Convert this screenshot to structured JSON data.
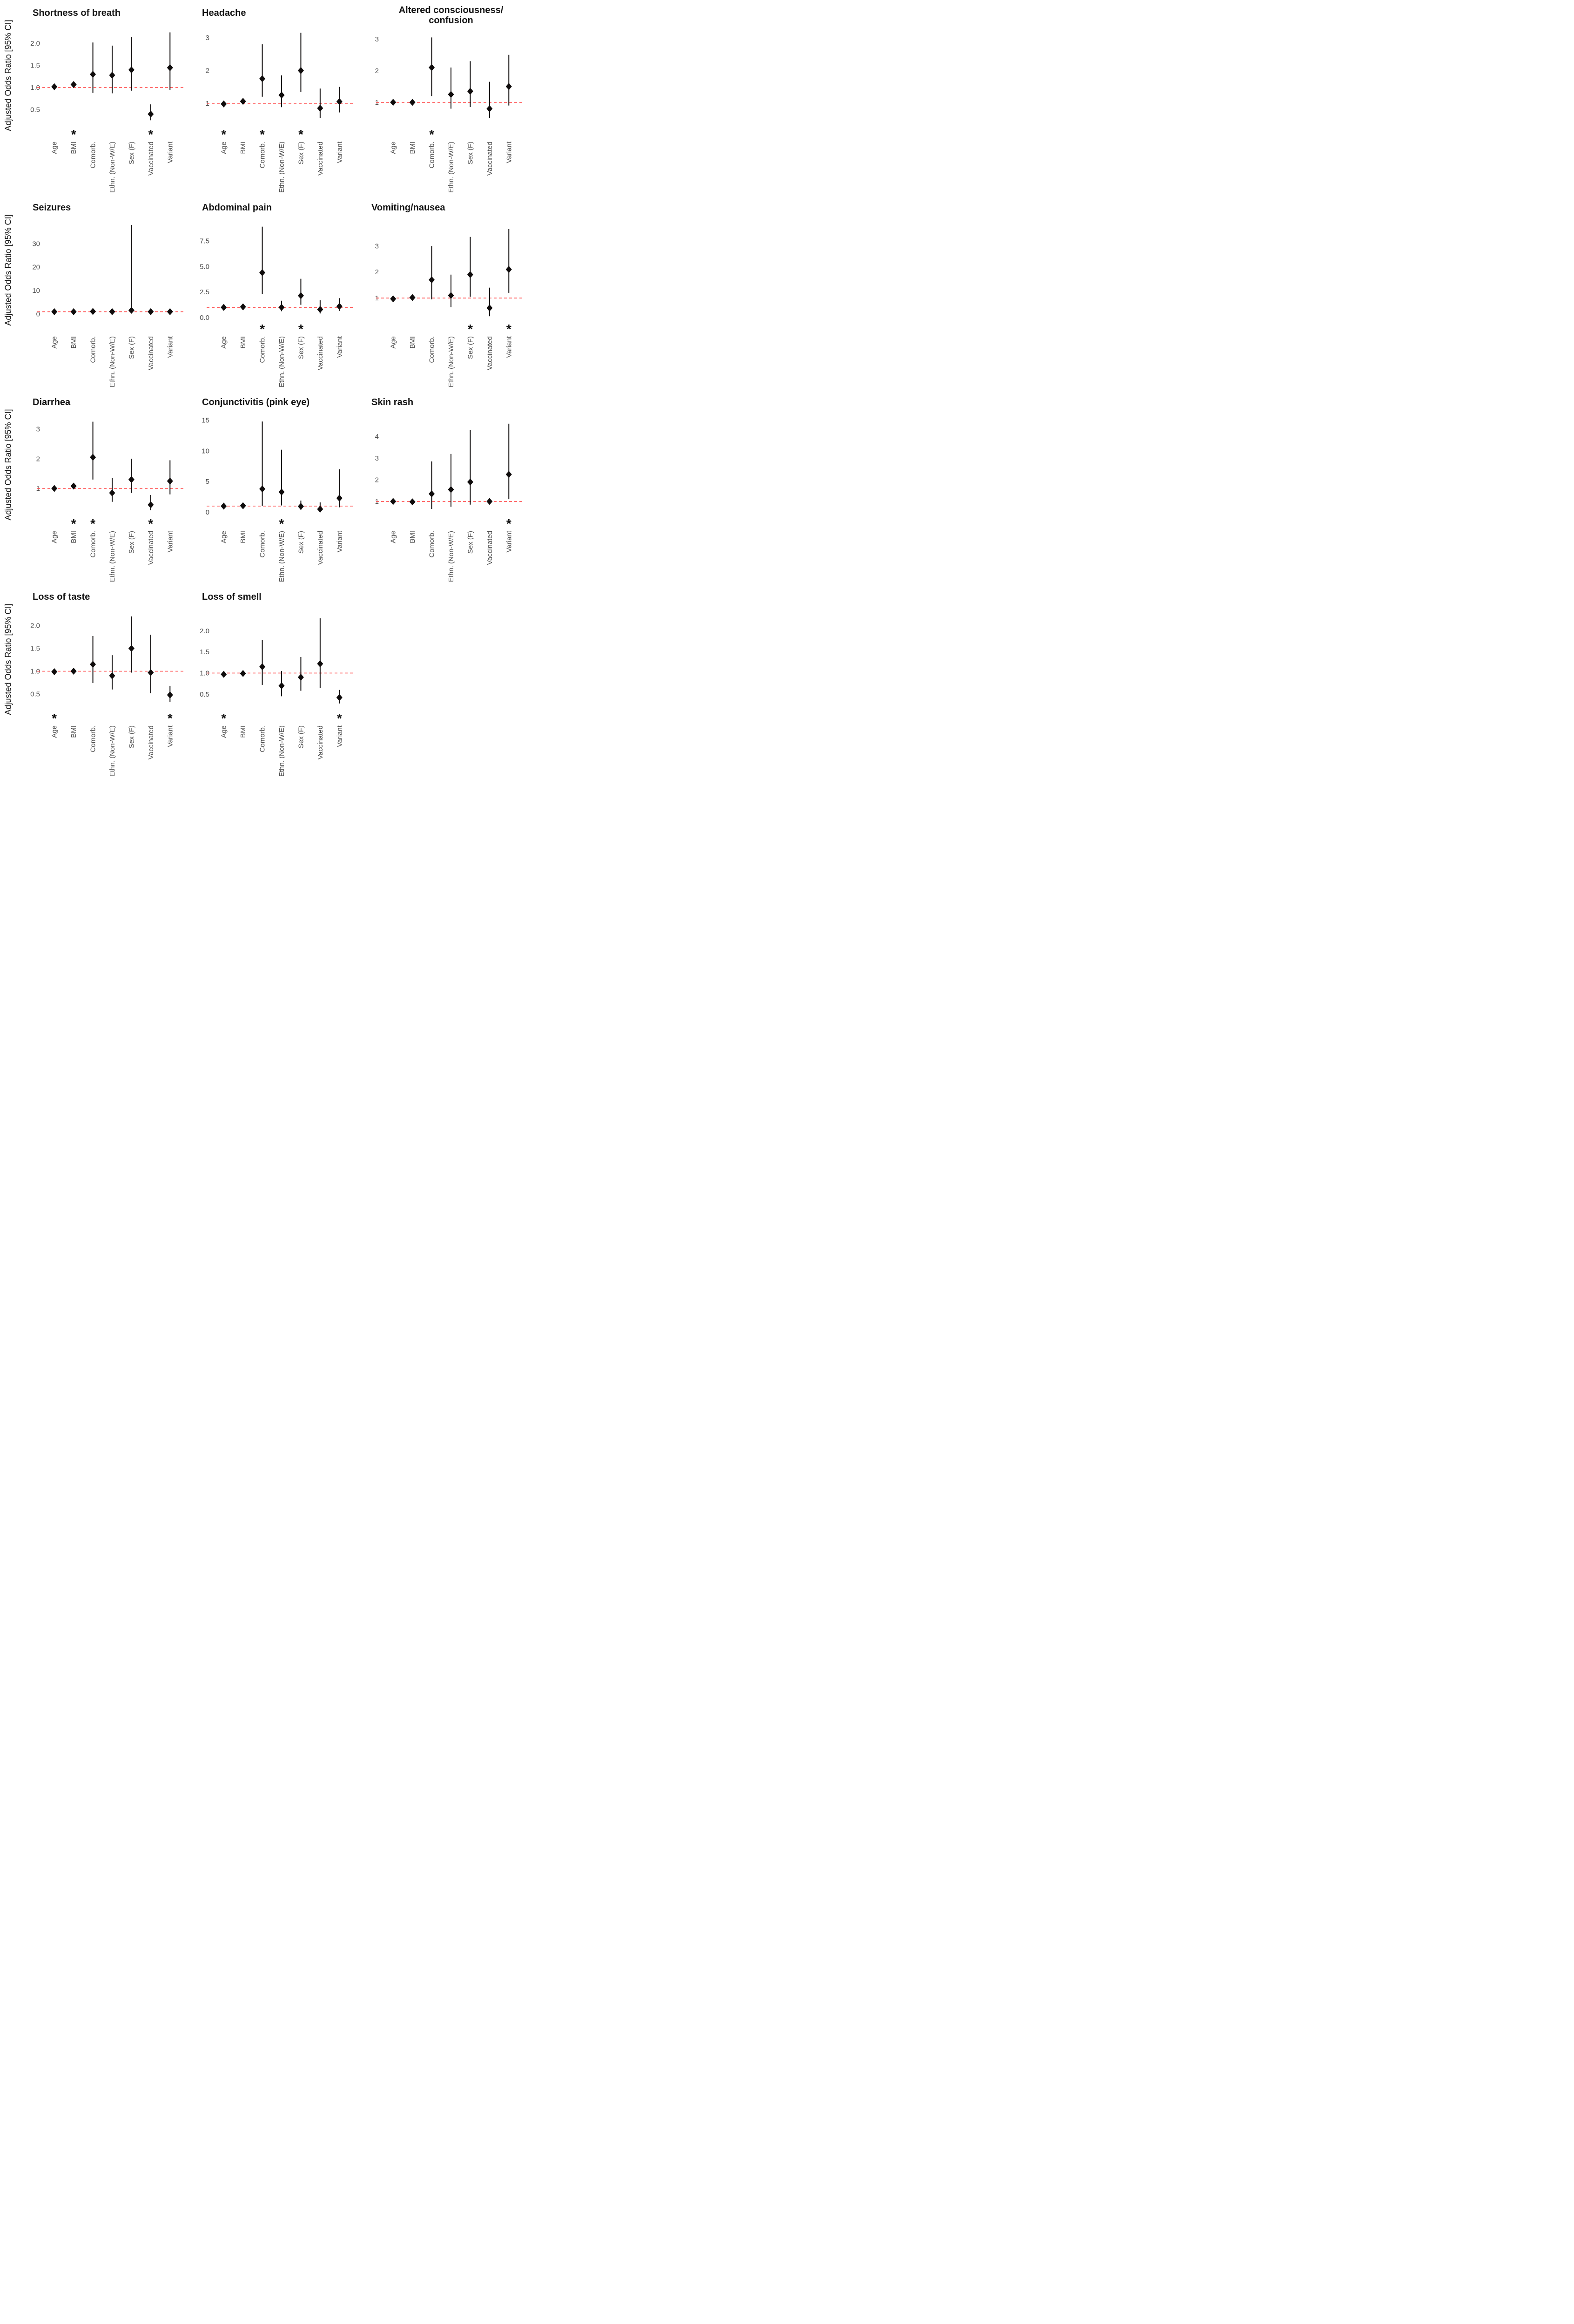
{
  "figure": {
    "ylabel": "Adjusted Odds Ratio [95% CI]",
    "significance_marker": "*",
    "reference_line": 1.0,
    "categories": [
      "Age",
      "BMI",
      "Comorb.",
      "Ethn. (Non-W/E)",
      "Sex (F)",
      "Vaccinated",
      "Variant"
    ],
    "colors": {
      "reference": "#ff4a4a",
      "point": "#0f0c0c",
      "tick_text": "#4d4d4d",
      "title_text": "#141414",
      "background": "#ffffff"
    }
  },
  "chart_data": [
    {
      "type": "scatter",
      "marker": "diamond",
      "row": 0,
      "col": 0,
      "title": "Shortness of breath",
      "title_lines": [
        "Shortness of breath"
      ],
      "xlabel": "",
      "ylabel": "Adjusted Odds Ratio [95% CI]",
      "yticks": [
        0.5,
        1.0,
        1.5,
        2.0
      ],
      "ytick_labels": [
        "0.5",
        "1.0",
        "1.5",
        "2.0"
      ],
      "ylim": [
        0.2,
        2.35
      ],
      "points": [
        {
          "category": "Age",
          "or": 1.02,
          "ci_low": 0.98,
          "ci_high": 1.07,
          "significant": false
        },
        {
          "category": "BMI",
          "or": 1.07,
          "ci_low": 1.03,
          "ci_high": 1.12,
          "significant": true
        },
        {
          "category": "Comorb.",
          "or": 1.3,
          "ci_low": 0.88,
          "ci_high": 2.02,
          "significant": false
        },
        {
          "category": "Ethn. (Non-W/E)",
          "or": 1.28,
          "ci_low": 0.87,
          "ci_high": 1.95,
          "significant": false
        },
        {
          "category": "Sex (F)",
          "or": 1.4,
          "ci_low": 0.93,
          "ci_high": 2.15,
          "significant": false
        },
        {
          "category": "Vaccinated",
          "or": 0.4,
          "ci_low": 0.26,
          "ci_high": 0.62,
          "significant": true
        },
        {
          "category": "Variant",
          "or": 1.45,
          "ci_low": 0.95,
          "ci_high": 2.25,
          "significant": false
        }
      ]
    },
    {
      "type": "scatter",
      "marker": "diamond",
      "row": 0,
      "col": 1,
      "title": "Headache",
      "title_lines": [
        "Headache"
      ],
      "xlabel": "",
      "ylabel": "Adjusted Odds Ratio [95% CI]",
      "yticks": [
        1,
        2,
        3
      ],
      "ytick_labels": [
        "1",
        "2",
        "3"
      ],
      "ylim": [
        0.4,
        3.3
      ],
      "points": [
        {
          "category": "Age",
          "or": 0.98,
          "ci_low": 0.96,
          "ci_high": 1.01,
          "significant": true
        },
        {
          "category": "BMI",
          "or": 1.06,
          "ci_low": 1.01,
          "ci_high": 1.11,
          "significant": false
        },
        {
          "category": "Comorb.",
          "or": 1.75,
          "ci_low": 1.2,
          "ci_high": 2.8,
          "significant": true
        },
        {
          "category": "Ethn. (Non-W/E)",
          "or": 1.25,
          "ci_low": 0.88,
          "ci_high": 1.85,
          "significant": false
        },
        {
          "category": "Sex (F)",
          "or": 2.0,
          "ci_low": 1.35,
          "ci_high": 3.15,
          "significant": true
        },
        {
          "category": "Vaccinated",
          "or": 0.85,
          "ci_low": 0.55,
          "ci_high": 1.45,
          "significant": false
        },
        {
          "category": "Variant",
          "or": 1.05,
          "ci_low": 0.72,
          "ci_high": 1.5,
          "significant": false
        }
      ]
    },
    {
      "type": "scatter",
      "marker": "diamond",
      "row": 0,
      "col": 2,
      "title": "Altered consciousness/ confusion",
      "title_lines": [
        "Altered consciousness/",
        "confusion"
      ],
      "xlabel": "",
      "ylabel": "Adjusted Odds Ratio [95% CI]",
      "yticks": [
        1,
        2,
        3
      ],
      "ytick_labels": [
        "1",
        "2",
        "3"
      ],
      "ylim": [
        0.35,
        3.35
      ],
      "points": [
        {
          "category": "Age",
          "or": 1.0,
          "ci_low": 0.97,
          "ci_high": 1.03,
          "significant": false
        },
        {
          "category": "BMI",
          "or": 1.0,
          "ci_low": 0.96,
          "ci_high": 1.05,
          "significant": false
        },
        {
          "category": "Comorb.",
          "or": 2.1,
          "ci_low": 1.2,
          "ci_high": 3.05,
          "significant": true
        },
        {
          "category": "Ethn. (Non-W/E)",
          "or": 1.25,
          "ci_low": 0.8,
          "ci_high": 2.1,
          "significant": false
        },
        {
          "category": "Sex (F)",
          "or": 1.35,
          "ci_low": 0.85,
          "ci_high": 2.3,
          "significant": false
        },
        {
          "category": "Vaccinated",
          "or": 0.8,
          "ci_low": 0.5,
          "ci_high": 1.65,
          "significant": false
        },
        {
          "category": "Variant",
          "or": 1.5,
          "ci_low": 0.9,
          "ci_high": 2.5,
          "significant": false
        }
      ]
    },
    {
      "type": "scatter",
      "marker": "diamond",
      "row": 1,
      "col": 0,
      "title": "Seizures",
      "title_lines": [
        "Seizures"
      ],
      "xlabel": "",
      "ylabel": "Adjusted Odds Ratio [95% CI]",
      "yticks": [
        0,
        10,
        20,
        30
      ],
      "ytick_labels": [
        "0",
        "10",
        "20",
        "30"
      ],
      "ylim": [
        -1.5,
        39
      ],
      "points": [
        {
          "category": "Age",
          "or": 1.0,
          "ci_low": 0.9,
          "ci_high": 1.1,
          "significant": false
        },
        {
          "category": "BMI",
          "or": 1.0,
          "ci_low": 0.9,
          "ci_high": 1.15,
          "significant": false
        },
        {
          "category": "Comorb.",
          "or": 1.1,
          "ci_low": 0.6,
          "ci_high": 2.0,
          "significant": false
        },
        {
          "category": "Ethn. (Non-W/E)",
          "or": 1.0,
          "ci_low": 0.5,
          "ci_high": 1.9,
          "significant": false
        },
        {
          "category": "Sex (F)",
          "or": 1.6,
          "ci_low": 0.5,
          "ci_high": 38.0,
          "significant": false
        },
        {
          "category": "Vaccinated",
          "or": 1.0,
          "ci_low": 0.5,
          "ci_high": 2.0,
          "significant": false
        },
        {
          "category": "Variant",
          "or": 1.0,
          "ci_low": 0.5,
          "ci_high": 2.0,
          "significant": false
        }
      ]
    },
    {
      "type": "scatter",
      "marker": "diamond",
      "row": 1,
      "col": 1,
      "title": "Abdominal pain",
      "title_lines": [
        "Abdominal pain"
      ],
      "xlabel": "",
      "ylabel": "Adjusted Odds Ratio [95% CI]",
      "yticks": [
        0.0,
        2.5,
        5.0,
        7.5
      ],
      "ytick_labels": [
        "0.0",
        "2.5",
        "5.0",
        "7.5"
      ],
      "ylim": [
        0,
        9.3
      ],
      "points": [
        {
          "category": "Age",
          "or": 1.0,
          "ci_low": 0.93,
          "ci_high": 1.07,
          "significant": false
        },
        {
          "category": "BMI",
          "or": 1.05,
          "ci_low": 0.97,
          "ci_high": 1.14,
          "significant": false
        },
        {
          "category": "Comorb.",
          "or": 4.4,
          "ci_low": 2.3,
          "ci_high": 8.9,
          "significant": true
        },
        {
          "category": "Ethn. (Non-W/E)",
          "or": 1.0,
          "ci_low": 0.62,
          "ci_high": 1.65,
          "significant": false
        },
        {
          "category": "Sex (F)",
          "or": 2.15,
          "ci_low": 1.25,
          "ci_high": 3.8,
          "significant": true
        },
        {
          "category": "Vaccinated",
          "or": 0.8,
          "ci_low": 0.4,
          "ci_high": 1.7,
          "significant": false
        },
        {
          "category": "Variant",
          "or": 1.1,
          "ci_low": 0.65,
          "ci_high": 1.9,
          "significant": false
        }
      ]
    },
    {
      "type": "scatter",
      "marker": "diamond",
      "row": 1,
      "col": 2,
      "title": "Vomiting/nausea",
      "title_lines": [
        "Vomiting/nausea"
      ],
      "xlabel": "",
      "ylabel": "Adjusted Odds Ratio [95% CI]",
      "yticks": [
        1,
        2,
        3
      ],
      "ytick_labels": [
        "1",
        "2",
        "3"
      ],
      "ylim": [
        0.25,
        3.9
      ],
      "points": [
        {
          "category": "Age",
          "or": 0.97,
          "ci_low": 0.94,
          "ci_high": 1.0,
          "significant": false
        },
        {
          "category": "BMI",
          "or": 1.02,
          "ci_low": 0.97,
          "ci_high": 1.08,
          "significant": false
        },
        {
          "category": "Comorb.",
          "or": 1.7,
          "ci_low": 0.95,
          "ci_high": 3.0,
          "significant": false
        },
        {
          "category": "Ethn. (Non-W/E)",
          "or": 1.1,
          "ci_low": 0.65,
          "ci_high": 1.9,
          "significant": false
        },
        {
          "category": "Sex (F)",
          "or": 1.9,
          "ci_low": 1.05,
          "ci_high": 3.35,
          "significant": true
        },
        {
          "category": "Vaccinated",
          "or": 0.62,
          "ci_low": 0.3,
          "ci_high": 1.4,
          "significant": false
        },
        {
          "category": "Variant",
          "or": 2.1,
          "ci_low": 1.2,
          "ci_high": 3.65,
          "significant": true
        }
      ]
    },
    {
      "type": "scatter",
      "marker": "diamond",
      "row": 2,
      "col": 0,
      "title": "Diarrhea",
      "title_lines": [
        "Diarrhea"
      ],
      "xlabel": "",
      "ylabel": "Adjusted Odds Ratio [95% CI]",
      "yticks": [
        1,
        2,
        3
      ],
      "ytick_labels": [
        "1",
        "2",
        "3"
      ],
      "ylim": [
        0.2,
        3.4
      ],
      "points": [
        {
          "category": "Age",
          "or": 1.0,
          "ci_low": 0.97,
          "ci_high": 1.04,
          "significant": false
        },
        {
          "category": "BMI",
          "or": 1.08,
          "ci_low": 1.03,
          "ci_high": 1.13,
          "significant": true
        },
        {
          "category": "Comorb.",
          "or": 2.05,
          "ci_low": 1.3,
          "ci_high": 3.25,
          "significant": true
        },
        {
          "category": "Ethn. (Non-W/E)",
          "or": 0.85,
          "ci_low": 0.55,
          "ci_high": 1.35,
          "significant": false
        },
        {
          "category": "Sex (F)",
          "or": 1.3,
          "ci_low": 0.85,
          "ci_high": 2.0,
          "significant": false
        },
        {
          "category": "Vaccinated",
          "or": 0.45,
          "ci_low": 0.27,
          "ci_high": 0.78,
          "significant": true
        },
        {
          "category": "Variant",
          "or": 1.25,
          "ci_low": 0.8,
          "ci_high": 1.95,
          "significant": false
        }
      ]
    },
    {
      "type": "scatter",
      "marker": "diamond",
      "row": 2,
      "col": 1,
      "title": "Conjunctivitis (pink eye)",
      "title_lines": [
        "Conjunctivitis (pink eye)"
      ],
      "xlabel": "",
      "ylabel": "Adjusted Odds Ratio [95% CI]",
      "yticks": [
        0,
        5,
        10,
        15
      ],
      "ytick_labels": [
        "0",
        "5",
        "10",
        "15"
      ],
      "ylim": [
        0,
        15.5
      ],
      "points": [
        {
          "category": "Age",
          "or": 1.0,
          "ci_low": 0.85,
          "ci_high": 1.2,
          "significant": false
        },
        {
          "category": "BMI",
          "or": 1.05,
          "ci_low": 0.85,
          "ci_high": 1.3,
          "significant": false
        },
        {
          "category": "Comorb.",
          "or": 3.8,
          "ci_low": 1.05,
          "ci_high": 14.8,
          "significant": false
        },
        {
          "category": "Ethn. (Non-W/E)",
          "or": 3.3,
          "ci_low": 1.1,
          "ci_high": 10.2,
          "significant": true
        },
        {
          "category": "Sex (F)",
          "or": 0.95,
          "ci_low": 0.4,
          "ci_high": 1.9,
          "significant": false
        },
        {
          "category": "Vaccinated",
          "or": 0.5,
          "ci_low": 0.12,
          "ci_high": 1.6,
          "significant": false
        },
        {
          "category": "Variant",
          "or": 2.3,
          "ci_low": 0.8,
          "ci_high": 7.0,
          "significant": false
        }
      ]
    },
    {
      "type": "scatter",
      "marker": "diamond",
      "row": 2,
      "col": 2,
      "title": "Skin rash",
      "title_lines": [
        "Skin rash"
      ],
      "xlabel": "",
      "ylabel": "Adjusted Odds Ratio [95% CI]",
      "yticks": [
        1,
        2,
        3,
        4
      ],
      "ytick_labels": [
        "1",
        "2",
        "3",
        "4"
      ],
      "ylim": [
        0.5,
        4.9
      ],
      "points": [
        {
          "category": "Age",
          "or": 1.0,
          "ci_low": 0.95,
          "ci_high": 1.06,
          "significant": false
        },
        {
          "category": "BMI",
          "or": 0.98,
          "ci_low": 0.9,
          "ci_high": 1.06,
          "significant": false
        },
        {
          "category": "Comorb.",
          "or": 1.35,
          "ci_low": 0.65,
          "ci_high": 2.85,
          "significant": false
        },
        {
          "category": "Ethn. (Non-W/E)",
          "or": 1.55,
          "ci_low": 0.75,
          "ci_high": 3.2,
          "significant": false
        },
        {
          "category": "Sex (F)",
          "or": 1.9,
          "ci_low": 0.85,
          "ci_high": 4.3,
          "significant": false
        },
        {
          "category": "Vaccinated",
          "or": 1.0,
          "ci_low": 0.93,
          "ci_high": 1.1,
          "significant": false
        },
        {
          "category": "Variant",
          "or": 2.25,
          "ci_low": 1.1,
          "ci_high": 4.6,
          "significant": true
        }
      ]
    },
    {
      "type": "scatter",
      "marker": "diamond",
      "row": 3,
      "col": 0,
      "title": "Loss of taste",
      "title_lines": [
        "Loss of taste"
      ],
      "xlabel": "",
      "ylabel": "Adjusted Odds Ratio [95% CI]",
      "yticks": [
        0.5,
        1.0,
        1.5,
        2.0
      ],
      "ytick_labels": [
        "0.5",
        "1.0",
        "1.5",
        "2.0"
      ],
      "ylim": [
        0.22,
        2.3
      ],
      "points": [
        {
          "category": "Age",
          "or": 0.99,
          "ci_low": 0.97,
          "ci_high": 1.01,
          "significant": true
        },
        {
          "category": "BMI",
          "or": 1.0,
          "ci_low": 0.97,
          "ci_high": 1.03,
          "significant": false
        },
        {
          "category": "Comorb.",
          "or": 1.15,
          "ci_low": 0.74,
          "ci_high": 1.77,
          "significant": false
        },
        {
          "category": "Ethn. (Non-W/E)",
          "or": 0.9,
          "ci_low": 0.6,
          "ci_high": 1.35,
          "significant": false
        },
        {
          "category": "Sex (F)",
          "or": 1.5,
          "ci_low": 0.97,
          "ci_high": 2.2,
          "significant": false
        },
        {
          "category": "Vaccinated",
          "or": 0.97,
          "ci_low": 0.52,
          "ci_high": 1.8,
          "significant": false
        },
        {
          "category": "Variant",
          "or": 0.48,
          "ci_low": 0.33,
          "ci_high": 0.68,
          "significant": true
        }
      ]
    },
    {
      "type": "scatter",
      "marker": "diamond",
      "row": 3,
      "col": 1,
      "title": "Loss of smell",
      "title_lines": [
        "Loss of smell"
      ],
      "xlabel": "",
      "ylabel": "Adjusted Odds Ratio [95% CI]",
      "yticks": [
        0.5,
        1.0,
        1.5,
        2.0
      ],
      "ytick_labels": [
        "0.5",
        "1.0",
        "1.5",
        "2.0"
      ],
      "ylim": [
        0.2,
        2.45
      ],
      "points": [
        {
          "category": "Age",
          "or": 0.97,
          "ci_low": 0.95,
          "ci_high": 0.99,
          "significant": true
        },
        {
          "category": "BMI",
          "or": 0.99,
          "ci_low": 0.96,
          "ci_high": 1.02,
          "significant": false
        },
        {
          "category": "Comorb.",
          "or": 1.15,
          "ci_low": 0.72,
          "ci_high": 1.78,
          "significant": false
        },
        {
          "category": "Ethn. (Non-W/E)",
          "or": 0.7,
          "ci_low": 0.45,
          "ci_high": 1.05,
          "significant": false
        },
        {
          "category": "Sex (F)",
          "or": 0.9,
          "ci_low": 0.58,
          "ci_high": 1.38,
          "significant": false
        },
        {
          "category": "Vaccinated",
          "or": 1.22,
          "ci_low": 0.65,
          "ci_high": 2.3,
          "significant": false
        },
        {
          "category": "Variant",
          "or": 0.42,
          "ci_low": 0.28,
          "ci_high": 0.6,
          "significant": true
        }
      ]
    }
  ]
}
